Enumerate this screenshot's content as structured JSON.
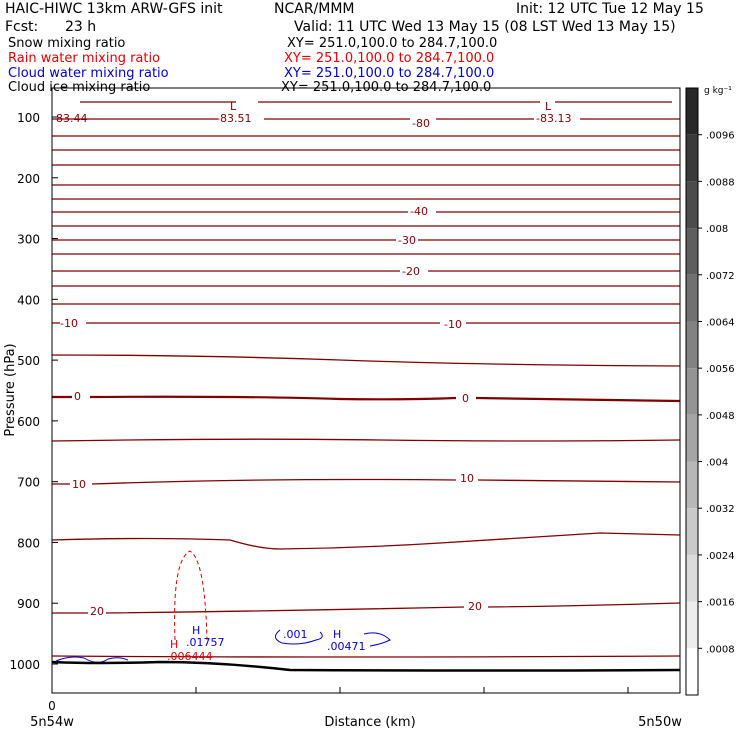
{
  "header": {
    "model": "HAIC-HIWC 13km ARW-GFS init",
    "org": "NCAR/MMM",
    "init": "Init: 12 UTC Tue 12 May 15",
    "fcst_label": "Fcst:",
    "fcst_value": "23 h",
    "valid": "Valid: 11 UTC Wed 13 May 15 (08 LST Wed 13 May 15)",
    "fields": [
      {
        "name": "Snow mixing ratio",
        "xy": "XY= 251.0,100.0 to 284.7,100.0",
        "color": "#000000"
      },
      {
        "name": "Rain water mixing ratio",
        "xy": "XY= 251.0,100.0 to 284.7,100.0",
        "color": "#e00000"
      },
      {
        "name": "Cloud water mixing ratio",
        "xy": "XY= 251.0,100.0 to 284.7,100.0",
        "color": "#0000cc"
      },
      {
        "name": "Cloud ice mixing ratio",
        "xy": "XY= 251.0,100.0 to 284.7,100.0",
        "color": "#000000"
      }
    ]
  },
  "chart_data": {
    "type": "contour",
    "xlabel": "Distance (km)",
    "ylabel": "Pressure (hPa)",
    "x_ticks": [
      "0"
    ],
    "x_endpoints": [
      "5n54w",
      "5n50w"
    ],
    "y_ticks": [
      100,
      200,
      300,
      400,
      500,
      600,
      700,
      800,
      900,
      1000
    ],
    "ylim": [
      1050,
      85
    ],
    "temperature_labels": [
      {
        "text": "-83.44",
        "p": 118
      },
      {
        "text": "-83.51",
        "p": 118
      },
      {
        "text": "-80",
        "p": 123
      },
      {
        "text": "-83.13",
        "p": 118
      },
      {
        "text": "-40",
        "p": 230
      },
      {
        "text": "-30",
        "p": 290
      },
      {
        "text": "-20",
        "p": 355
      },
      {
        "text": "-10",
        "p": 428
      },
      {
        "text": "-10",
        "p": 430
      },
      {
        "text": "0",
        "p": 560
      },
      {
        "text": "0",
        "p": 562
      },
      {
        "text": "10",
        "p": 703
      },
      {
        "text": "10",
        "p": 697
      },
      {
        "text": "20",
        "p": 915
      },
      {
        "text": "20",
        "p": 910
      }
    ],
    "extrema": [
      {
        "kind": "L",
        "value": "",
        "color": "#800000"
      },
      {
        "kind": "L",
        "value": "",
        "color": "#800000"
      },
      {
        "kind": "H",
        "value": ".006444",
        "color": "#e00000"
      },
      {
        "kind": "H",
        "value": ".01757",
        "color": "#0000cc"
      },
      {
        "kind": "H",
        "value": ".00471",
        "color": "#0000cc"
      }
    ],
    "cloud_contour_label": ".001",
    "colorbar": {
      "unit": "g kg⁻¹",
      "ticks": [
        ".0096",
        ".0088",
        ".008",
        ".0072",
        ".0064",
        ".0056",
        ".0048",
        ".004",
        ".0032",
        ".0024",
        ".0016",
        ".0008"
      ]
    }
  }
}
